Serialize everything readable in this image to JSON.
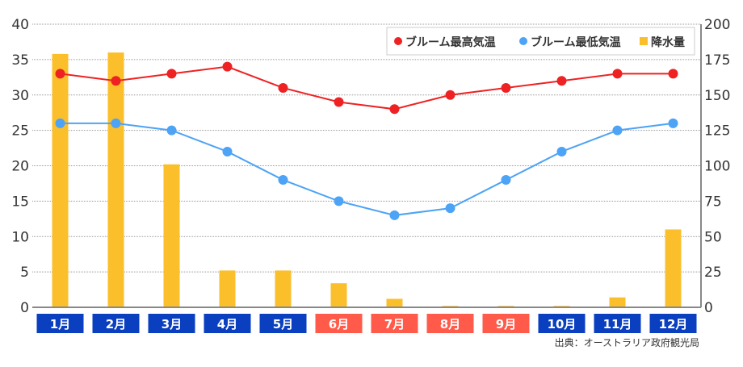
{
  "chart_data": {
    "type": "bar+line",
    "categories": [
      "1月",
      "2月",
      "3月",
      "4月",
      "5月",
      "6月",
      "7月",
      "8月",
      "9月",
      "10月",
      "11月",
      "12月"
    ],
    "series": [
      {
        "name": "ブルーム最高気温",
        "type": "line",
        "axis": "left",
        "color": "#ee2222",
        "values": [
          33,
          32,
          33,
          34,
          31,
          29,
          28,
          30,
          31,
          32,
          33,
          33
        ]
      },
      {
        "name": "ブルーム最低気温",
        "type": "line",
        "axis": "left",
        "color": "#4da3f5",
        "values": [
          26,
          26,
          25,
          22,
          18,
          15,
          13,
          14,
          18,
          22,
          25,
          26
        ]
      },
      {
        "name": "降水量",
        "type": "bar",
        "axis": "right",
        "color": "#fbbf2b",
        "values": [
          179,
          180,
          101,
          26,
          26,
          17,
          6,
          1,
          1,
          1,
          7,
          55
        ]
      }
    ],
    "left_axis": {
      "range": [
        0,
        40
      ],
      "ticks": [
        "0",
        "5",
        "10",
        "15",
        "20",
        "25",
        "30",
        "35",
        "40"
      ]
    },
    "right_axis": {
      "range": [
        0,
        200
      ],
      "ticks": [
        "0",
        "25",
        "50",
        "75",
        "100",
        "125",
        "150",
        "175",
        "200"
      ]
    },
    "month_colors": {
      "default": "#0a3fbf",
      "highlight": "#ff5a4a"
    },
    "highlight_months": [
      "6月",
      "7月",
      "8月",
      "9月"
    ],
    "grid": true,
    "legend_position": "top-right"
  },
  "source": "出典：オーストラリア政府観光局"
}
